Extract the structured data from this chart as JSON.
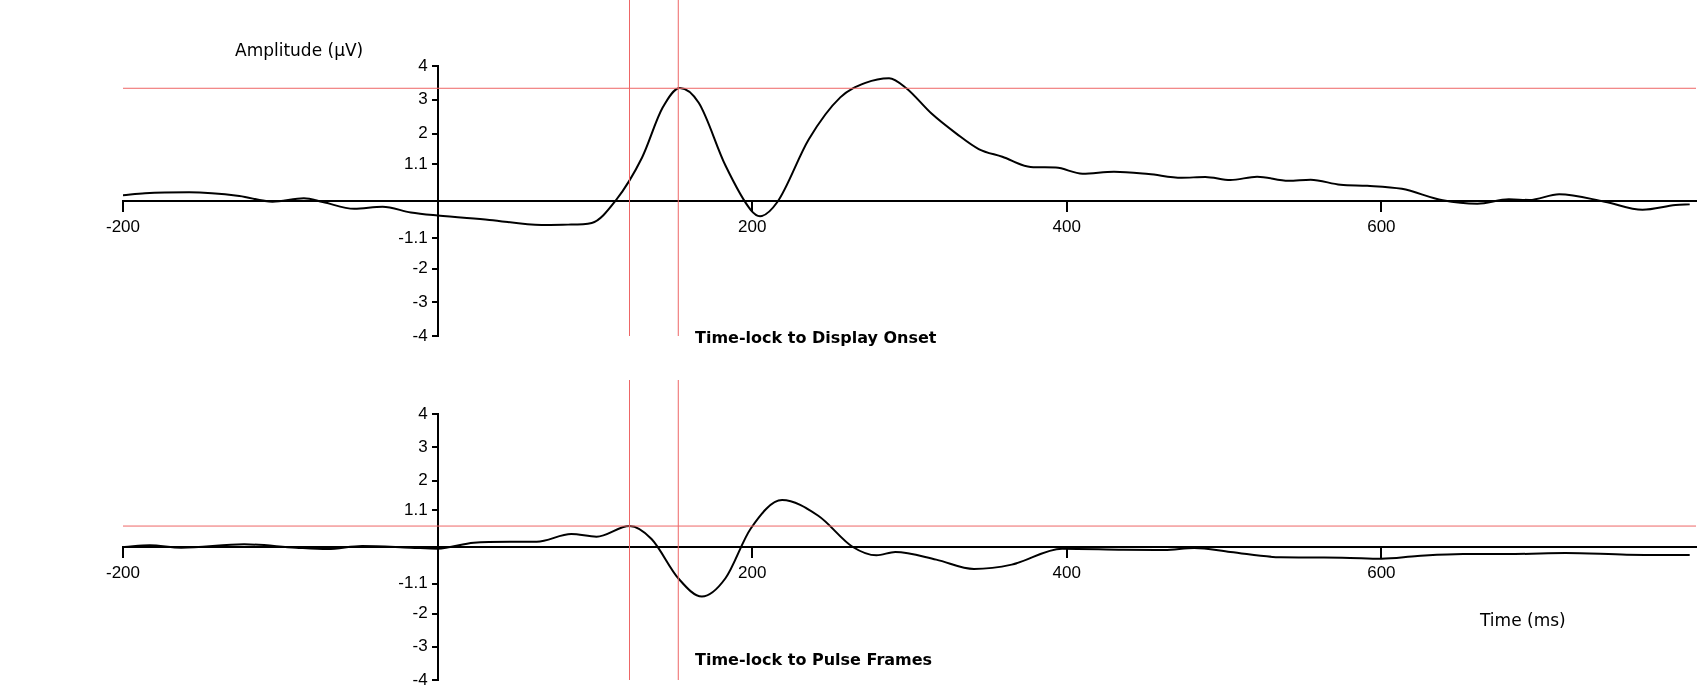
{
  "chart_data": [
    {
      "type": "line",
      "title": "Time-lock to Display Onset",
      "ylabel": "Amplitude (µV)",
      "color": "#000000",
      "marker": "none",
      "grid": false,
      "legend": false,
      "x": [
        -200,
        -186,
        -158,
        -126,
        -105,
        -85,
        -73,
        -53,
        -35,
        -17,
        0,
        33,
        66,
        83,
        98,
        113,
        130,
        143,
        154,
        166,
        183,
        199,
        205,
        216,
        236,
        256,
        272,
        287,
        298,
        314,
        330,
        344,
        359,
        377,
        393,
        410,
        430,
        452,
        473,
        488,
        504,
        521,
        541,
        555,
        574,
        591,
        613,
        639,
        661,
        681,
        694,
        713,
        742,
        766,
        787,
        796
      ],
      "values": [
        0.17,
        0.23,
        0.26,
        0.15,
        -0.02,
        0.08,
        -0.03,
        -0.23,
        -0.17,
        -0.34,
        -0.43,
        -0.56,
        -0.71,
        -0.7,
        -0.65,
        0,
        1.29,
        2.76,
        3.35,
        2.91,
        1.05,
        -0.26,
        -0.45,
        -0.03,
        1.83,
        3.07,
        3.5,
        3.64,
        3.34,
        2.59,
        1.99,
        1.54,
        1.31,
        1.01,
        0.99,
        0.81,
        0.87,
        0.8,
        0.69,
        0.71,
        0.62,
        0.72,
        0.6,
        0.63,
        0.48,
        0.45,
        0.36,
        0.02,
        -0.08,
        0.05,
        0.03,
        0.2,
        -0.02,
        -0.26,
        -0.12,
        -0.1
      ],
      "xlim": [
        -200,
        800
      ],
      "xticks": [
        -200,
        200,
        400,
        600
      ],
      "ylim": [
        -4,
        4
      ],
      "yticks": [
        -4,
        -3,
        -2,
        -1.1,
        1.1,
        2,
        3,
        4
      ],
      "ref_lines": [
        {
          "axis": "x",
          "value": 122,
          "color": "#ee6666"
        },
        {
          "axis": "x",
          "value": 153,
          "color": "#ee6666"
        },
        {
          "axis": "y",
          "value": 3.34,
          "color": "#ee6666"
        }
      ]
    },
    {
      "type": "line",
      "title": "Time-lock to Pulse Frames",
      "xlabel": "Time (ms)",
      "color": "#000000",
      "marker": "none",
      "grid": false,
      "legend": false,
      "x": [
        -199,
        -183,
        -163,
        -123,
        -90,
        -70,
        -48,
        -17,
        0,
        23,
        46,
        63,
        85,
        101,
        122,
        136,
        153,
        168,
        183,
        199,
        219,
        242,
        264,
        279,
        291,
        317,
        341,
        365,
        397,
        436,
        462,
        481,
        504,
        536,
        575,
        600,
        623,
        652,
        685,
        717,
        756,
        796
      ],
      "values": [
        0,
        0.05,
        -0.02,
        0.08,
        -0.02,
        -0.06,
        0.03,
        -0.02,
        -0.05,
        0.13,
        0.16,
        0.16,
        0.39,
        0.31,
        0.63,
        0.24,
        -0.94,
        -1.49,
        -0.94,
        0.55,
        1.41,
        0.94,
        0,
        -0.25,
        -0.15,
        -0.38,
        -0.66,
        -0.53,
        -0.05,
        -0.08,
        -0.09,
        -0.03,
        -0.15,
        -0.31,
        -0.32,
        -0.35,
        -0.27,
        -0.21,
        -0.21,
        -0.18,
        -0.23,
        -0.24
      ],
      "xlim": [
        -200,
        800
      ],
      "xticks": [
        -200,
        200,
        400,
        600
      ],
      "ylim": [
        -4,
        4
      ],
      "yticks": [
        -4,
        -3,
        -2,
        -1.1,
        1.1,
        2,
        3,
        4
      ],
      "ref_lines": [
        {
          "axis": "x",
          "value": 122,
          "color": "#ee6666"
        },
        {
          "axis": "x",
          "value": 153,
          "color": "#ee6666"
        },
        {
          "axis": "y",
          "value": 0.63,
          "color": "#ee6666"
        }
      ]
    }
  ]
}
